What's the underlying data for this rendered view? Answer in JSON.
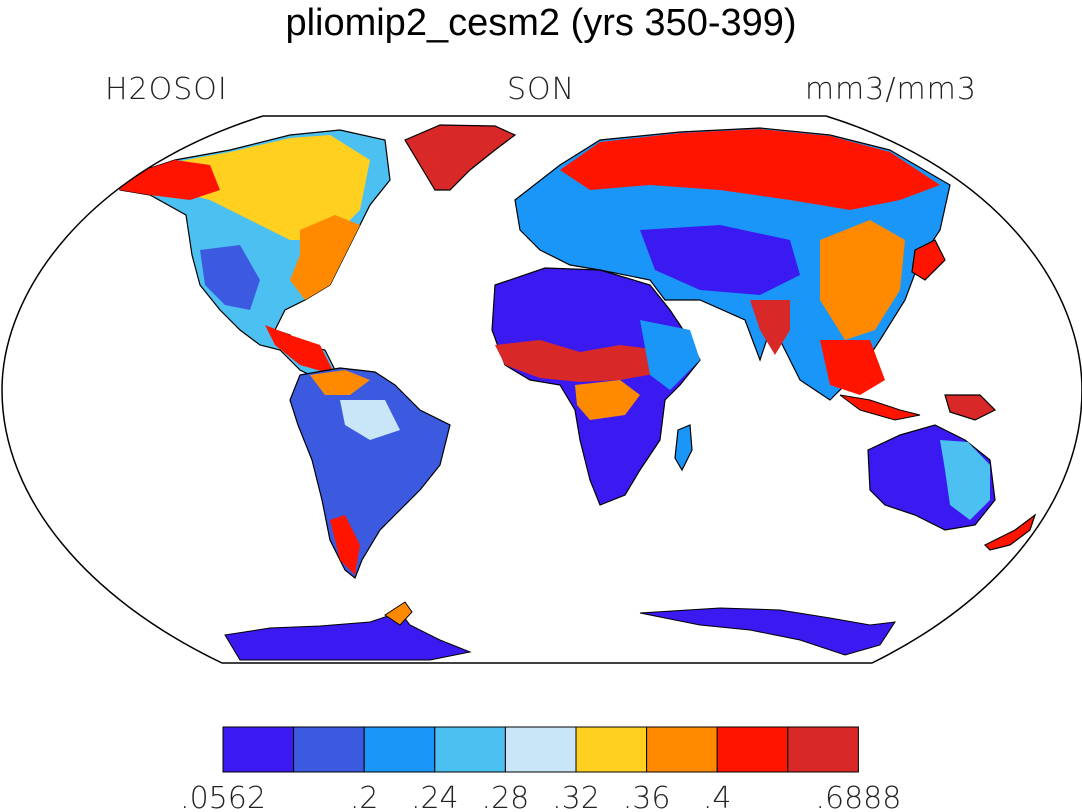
{
  "title": "pliomip2_cesm2 (yrs 350-399)",
  "subtitle_left": "H2OSOI",
  "subtitle_center": "SON",
  "subtitle_right": "mm3/mm3",
  "colorbar": {
    "colors": [
      "#3a1af0",
      "#3c5ae0",
      "#1a96f8",
      "#4cc0f0",
      "#c8e6f8",
      "#ffd020",
      "#ff8a00",
      "#ff1400",
      "#d82828"
    ],
    "tick_labels": [
      ".0562",
      "",
      ".2",
      ".24",
      ".28",
      ".32",
      ".36",
      ".4",
      "",
      ".6888"
    ]
  },
  "colors": {
    "ocean": "#ffffff",
    "outline": "#000000"
  }
}
